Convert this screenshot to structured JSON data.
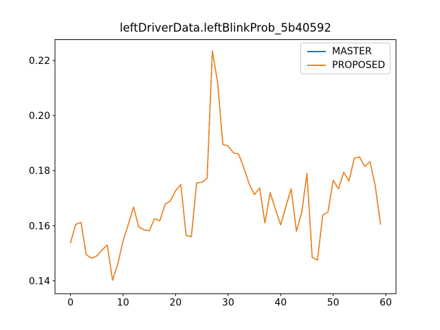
{
  "chart_data": {
    "type": "line",
    "title": "leftDriverData.leftBlinkProb_5b40592",
    "xlabel": "",
    "ylabel": "",
    "grid": false,
    "legend_position": "upper right",
    "xlim": [
      -2.95,
      61.95
    ],
    "ylim": [
      0.1353,
      0.2276
    ],
    "x_ticks": [
      0,
      10,
      20,
      30,
      40,
      50,
      60
    ],
    "y_ticks": [
      0.14,
      0.16,
      0.18,
      0.2,
      0.22
    ],
    "x": [
      0,
      1,
      2,
      3,
      4,
      5,
      6,
      7,
      8,
      9,
      10,
      11,
      12,
      13,
      14,
      15,
      16,
      17,
      18,
      19,
      20,
      21,
      22,
      23,
      24,
      25,
      26,
      27,
      28,
      29,
      30,
      31,
      32,
      33,
      34,
      35,
      36,
      37,
      38,
      39,
      40,
      41,
      42,
      43,
      44,
      45,
      46,
      47,
      48,
      49,
      50,
      51,
      52,
      53,
      54,
      55,
      56,
      57,
      58,
      59
    ],
    "series": [
      {
        "name": "MASTER",
        "color": "#1f77b4",
        "values": [
          0.1538,
          0.1605,
          0.1612,
          0.1495,
          0.1482,
          0.149,
          0.1512,
          0.153,
          0.1402,
          0.146,
          0.1545,
          0.1605,
          0.1668,
          0.1595,
          0.1585,
          0.1582,
          0.1626,
          0.1618,
          0.1678,
          0.169,
          0.1727,
          0.175,
          0.1565,
          0.156,
          0.1755,
          0.1758,
          0.1772,
          0.2235,
          0.212,
          0.1895,
          0.189,
          0.1865,
          0.186,
          0.181,
          0.1752,
          0.1713,
          0.1737,
          0.161,
          0.172,
          0.166,
          0.1603,
          0.167,
          0.1734,
          0.158,
          0.1647,
          0.179,
          0.1485,
          0.1475,
          0.1638,
          0.165,
          0.1765,
          0.1734,
          0.1794,
          0.1762,
          0.1845,
          0.185,
          0.1815,
          0.1833,
          0.1745,
          0.1605
        ]
      },
      {
        "name": "PROPOSED",
        "color": "#ff7f0e",
        "values": [
          0.1538,
          0.1605,
          0.1612,
          0.1495,
          0.1482,
          0.149,
          0.1512,
          0.153,
          0.1402,
          0.146,
          0.1545,
          0.1605,
          0.1668,
          0.1595,
          0.1585,
          0.1582,
          0.1626,
          0.1618,
          0.1678,
          0.169,
          0.1727,
          0.175,
          0.1565,
          0.156,
          0.1755,
          0.1758,
          0.1772,
          0.2235,
          0.212,
          0.1895,
          0.189,
          0.1865,
          0.186,
          0.181,
          0.1752,
          0.1713,
          0.1737,
          0.161,
          0.172,
          0.166,
          0.1603,
          0.167,
          0.1734,
          0.158,
          0.1647,
          0.179,
          0.1485,
          0.1475,
          0.1638,
          0.165,
          0.1765,
          0.1734,
          0.1794,
          0.1762,
          0.1845,
          0.185,
          0.1815,
          0.1833,
          0.1745,
          0.1605
        ]
      }
    ]
  },
  "legend": {
    "items": [
      {
        "label": "MASTER",
        "color": "#1f77b4"
      },
      {
        "label": "PROPOSED",
        "color": "#ff7f0e"
      }
    ]
  },
  "axis_color": "#000000"
}
